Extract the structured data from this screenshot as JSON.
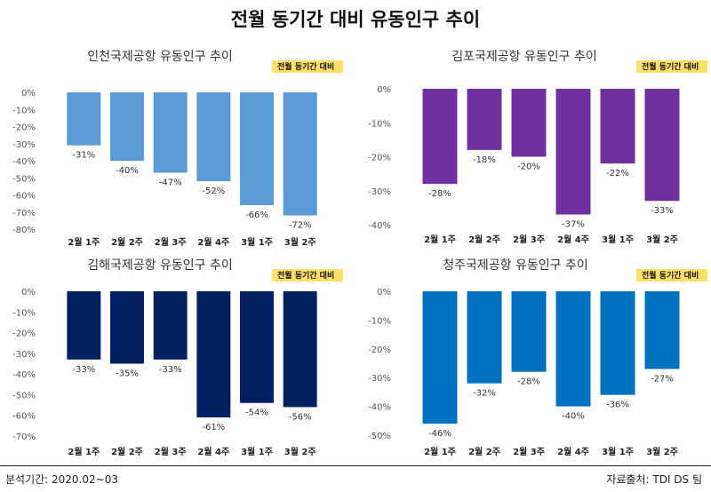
{
  "title": "전월 동기간 대비 유동인구 추이",
  "badge": "전월 동기간 대비",
  "footer": {
    "left": "분석기간: 2020.02~03",
    "right": "자료출처: TDI DS 팀"
  },
  "chart_data": [
    {
      "type": "bar",
      "title": "인천국제공항 유동인구 추이",
      "categories": [
        "2월 1주",
        "2월 2주",
        "2월 3주",
        "2월 4주",
        "3월 1주",
        "3월 2주"
      ],
      "values": [
        -31,
        -40,
        -47,
        -52,
        -66,
        -72
      ],
      "value_labels": [
        "-31%",
        "-40%",
        "-47%",
        "-52%",
        "-66%",
        "-72%"
      ],
      "ylim": [
        -80,
        0
      ],
      "yticks": [
        0,
        -10,
        -20,
        -30,
        -40,
        -50,
        -60,
        -70,
        -80
      ],
      "ytick_labels": [
        "0%",
        "-10%",
        "-20%",
        "-30%",
        "-40%",
        "-50%",
        "-60%",
        "-70%",
        "-80%"
      ],
      "color": "#5b9bd5",
      "grid": false
    },
    {
      "type": "bar",
      "title": "김포국제공항 유동인구 추이",
      "categories": [
        "2월 1주",
        "2월 2주",
        "2월 3주",
        "2월 4주",
        "3월 1주",
        "3월 2주"
      ],
      "values": [
        -28,
        -18,
        -20,
        -37,
        -22,
        -33
      ],
      "value_labels": [
        "-28%",
        "-18%",
        "-20%",
        "-37%",
        "-22%",
        "-33%"
      ],
      "ylim": [
        -40,
        0
      ],
      "yticks": [
        0,
        -10,
        -20,
        -30,
        -40
      ],
      "ytick_labels": [
        "0%",
        "-10%",
        "-20%",
        "-30%",
        "-40%"
      ],
      "color": "#7030a0",
      "grid": false
    },
    {
      "type": "bar",
      "title": "김해국제공항 유동인구 추이",
      "categories": [
        "2월 1주",
        "2월 2주",
        "2월 3주",
        "2월 4주",
        "3월 1주",
        "3월 2주"
      ],
      "values": [
        -33,
        -35,
        -33,
        -61,
        -54,
        -56
      ],
      "value_labels": [
        "-33%",
        "-35%",
        "-33%",
        "-61%",
        "-54%",
        "-56%"
      ],
      "ylim": [
        -70,
        0
      ],
      "yticks": [
        0,
        -10,
        -20,
        -30,
        -40,
        -50,
        -60,
        -70
      ],
      "ytick_labels": [
        "0%",
        "-10%",
        "-20%",
        "-30%",
        "-40%",
        "-50%",
        "-60%",
        "-70%"
      ],
      "color": "#002060",
      "grid": false
    },
    {
      "type": "bar",
      "title": "청주국제공항 유동인구 추이",
      "categories": [
        "2월 1주",
        "2월 2주",
        "2월 3주",
        "2월 4주",
        "3월 1주",
        "3월 2주"
      ],
      "values": [
        -46,
        -32,
        -28,
        -40,
        -36,
        -27
      ],
      "value_labels": [
        "-46%",
        "-32%",
        "-28%",
        "-40%",
        "-36%",
        "-27%"
      ],
      "ylim": [
        -50,
        0
      ],
      "yticks": [
        0,
        -10,
        -20,
        -30,
        -40,
        -50
      ],
      "ytick_labels": [
        "0%",
        "-10%",
        "-20%",
        "-30%",
        "-40%",
        "-50%"
      ],
      "color": "#0070c0",
      "grid": false
    }
  ]
}
